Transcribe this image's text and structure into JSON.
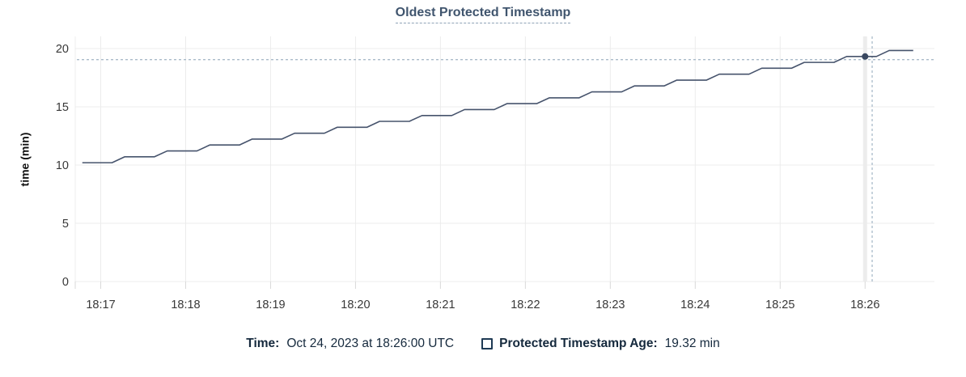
{
  "chart": {
    "title": "Oldest Protected Timestamp"
  },
  "chart_data": {
    "type": "line",
    "title": "Oldest Protected Timestamp",
    "xlabel": "",
    "ylabel": "time (min)",
    "ylim": [
      0,
      20
    ],
    "y_ticks": [
      0,
      5,
      10,
      15,
      20
    ],
    "x_ticks": [
      "18:17",
      "18:18",
      "18:19",
      "18:20",
      "18:21",
      "18:22",
      "18:23",
      "18:24",
      "18:25",
      "18:26"
    ],
    "x_domain": [
      "18:16:42",
      "18:26:49"
    ],
    "grid": true,
    "legend_position": "bottom",
    "series": [
      {
        "name": "Protected Timestamp Age",
        "unit": "min",
        "points": [
          [
            "18:16:47",
            10.2
          ],
          [
            "18:17:08",
            10.2
          ],
          [
            "18:17:17",
            10.71
          ],
          [
            "18:17:38",
            10.71
          ],
          [
            "18:17:47",
            11.21
          ],
          [
            "18:18:08",
            11.21
          ],
          [
            "18:18:17",
            11.72
          ],
          [
            "18:18:38",
            11.72
          ],
          [
            "18:18:47",
            12.23
          ],
          [
            "18:19:08",
            12.23
          ],
          [
            "18:19:17",
            12.73
          ],
          [
            "18:19:38",
            12.73
          ],
          [
            "18:19:47",
            13.24
          ],
          [
            "18:20:08",
            13.24
          ],
          [
            "18:20:17",
            13.75
          ],
          [
            "18:20:38",
            13.75
          ],
          [
            "18:20:47",
            14.25
          ],
          [
            "18:21:08",
            14.25
          ],
          [
            "18:21:17",
            14.76
          ],
          [
            "18:21:38",
            14.76
          ],
          [
            "18:21:47",
            15.27
          ],
          [
            "18:22:08",
            15.27
          ],
          [
            "18:22:17",
            15.77
          ],
          [
            "18:22:38",
            15.77
          ],
          [
            "18:22:47",
            16.28
          ],
          [
            "18:23:08",
            16.28
          ],
          [
            "18:23:17",
            16.79
          ],
          [
            "18:23:38",
            16.79
          ],
          [
            "18:23:47",
            17.29
          ],
          [
            "18:24:08",
            17.29
          ],
          [
            "18:24:17",
            17.8
          ],
          [
            "18:24:38",
            17.8
          ],
          [
            "18:24:47",
            18.31
          ],
          [
            "18:25:08",
            18.31
          ],
          [
            "18:25:17",
            18.81
          ],
          [
            "18:25:38",
            18.81
          ],
          [
            "18:25:47",
            19.32
          ],
          [
            "18:26:08",
            19.32
          ],
          [
            "18:26:17",
            19.83
          ],
          [
            "18:26:34",
            19.83
          ]
        ]
      }
    ],
    "hover": {
      "snap_time": "18:26:00",
      "snap_value": 19.32,
      "crosshair_time": "18:26:05",
      "crosshair_value": 19.05,
      "highlight_gridline": "18:26"
    }
  },
  "footer": {
    "time_label": "Time:",
    "time_value": "Oct 24, 2023 at 18:26:00 UTC",
    "series_label": "Protected Timestamp Age:",
    "series_value": "19.32 min"
  },
  "colors": {
    "line": "#46536c",
    "dot": "#394760",
    "grid": "#ececec",
    "hover_band": "#ededed",
    "tick_mark": "#d9d9d9",
    "crosshair": "#a9bac9",
    "title": "#40556e",
    "footer_text": "#15293d",
    "tick_text": "#383838"
  }
}
